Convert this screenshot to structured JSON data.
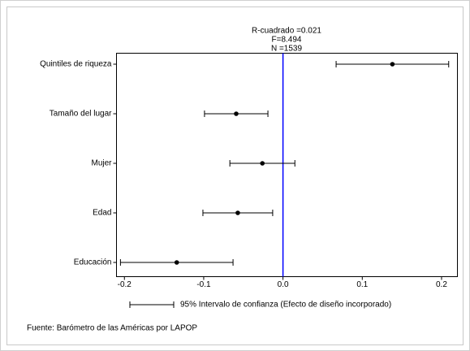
{
  "chart_data": {
    "type": "coefficient",
    "annotations": [
      "R-cuadrado =0.021",
      "F=8.494",
      "N =1539"
    ],
    "categories": [
      "Quintiles de riqueza",
      "Tamaño del lugar",
      "Mujer",
      "Edad",
      "Educación"
    ],
    "values": [
      0.138,
      -0.059,
      -0.026,
      -0.057,
      -0.134
    ],
    "errors": [
      0.071,
      0.04,
      0.041,
      0.044,
      0.071
    ],
    "color": "#000000",
    "xlim": [
      -0.21,
      0.22
    ],
    "xticks": [
      -0.2,
      -0.1,
      {
        "value": 0,
        "label": "0.0"
      },
      0.1,
      0.2
    ],
    "reference_line": {
      "value": 0,
      "color": "#0000ff"
    },
    "legend": "95% Intervalo de confianza (Efecto de diseño incorporado)",
    "source": "Fuente: Barómetro de las Américas por LAPOP"
  }
}
